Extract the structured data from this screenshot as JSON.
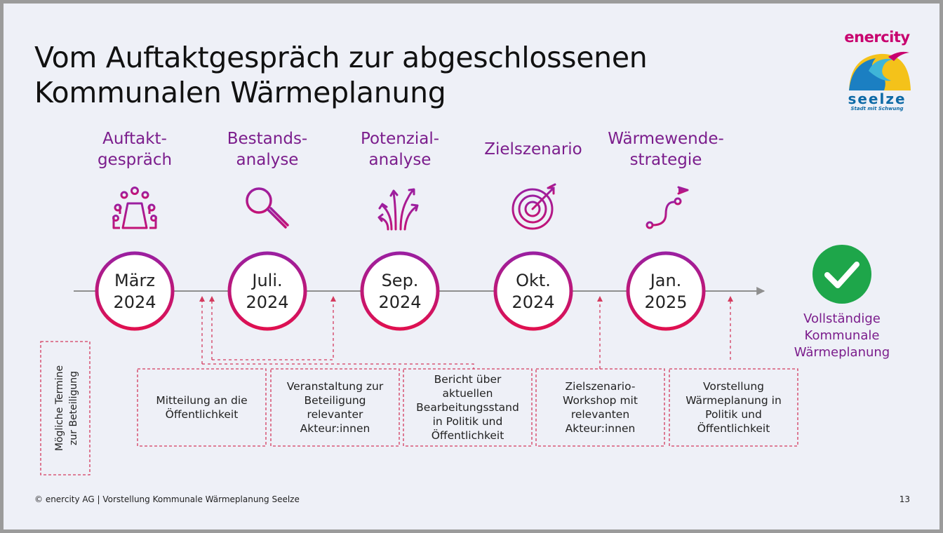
{
  "title": {
    "line1": "Vom Auftaktgespräch zur abgeschlossenen",
    "line2": "Kommunalen Wärmeplanung"
  },
  "logo": {
    "brand": "enercity",
    "city": "seelze",
    "tagline": "Stadt mit Schwung"
  },
  "colors": {
    "accent_purple": "#7b1d8c",
    "circle_gradient_start": "#9b1fa0",
    "circle_gradient_end": "#e0104f",
    "dashed_red": "#d43a5e",
    "done_green": "#1ea64a"
  },
  "steps": [
    {
      "label_lines": [
        "Auftakt-",
        "gespräch"
      ],
      "date_lines": [
        "März",
        "2024"
      ],
      "icon": "meeting-table-icon"
    },
    {
      "label_lines": [
        "Bestands-",
        "analyse"
      ],
      "date_lines": [
        "Juli.",
        "2024"
      ],
      "icon": "magnifier-icon"
    },
    {
      "label_lines": [
        "Potenzial-",
        "analyse"
      ],
      "date_lines": [
        "Sep.",
        "2024"
      ],
      "icon": "branching-arrows-icon"
    },
    {
      "label_lines": [
        "Zielszenario"
      ],
      "date_lines": [
        "Okt.",
        "2024"
      ],
      "icon": "target-icon"
    },
    {
      "label_lines": [
        "Wärmewende-",
        "strategie"
      ],
      "date_lines": [
        "Jan.",
        "2025"
      ],
      "icon": "path-flag-icon"
    }
  ],
  "completion": {
    "label_lines": [
      "Vollständige",
      "Kommunale",
      "Wärmeplanung"
    ],
    "icon": "checkmark-icon"
  },
  "legend": {
    "line1": "Mögliche Termine",
    "line2": "zur Beteiligung"
  },
  "events": [
    {
      "lines": [
        "Mitteilung an die",
        "Öffentlichkeit"
      ]
    },
    {
      "lines": [
        "Veranstaltung zur",
        "Beteiligung",
        "relevanter",
        "Akteur:innen"
      ]
    },
    {
      "lines": [
        "Bericht über",
        "aktuellen",
        "Bearbeitungsstand",
        "in Politik und",
        "Öffentlichkeit"
      ]
    },
    {
      "lines": [
        "Zielszenario-",
        "Workshop mit",
        "relevanten",
        "Akteur:innen"
      ]
    },
    {
      "lines": [
        "Vorstellung",
        "Wärmeplanung in",
        "Politik und",
        "Öffentlichkeit"
      ]
    }
  ],
  "footer": {
    "text": "© enercity AG | Vorstellung Kommunale Wärmeplanung Seelze",
    "page": "13"
  }
}
